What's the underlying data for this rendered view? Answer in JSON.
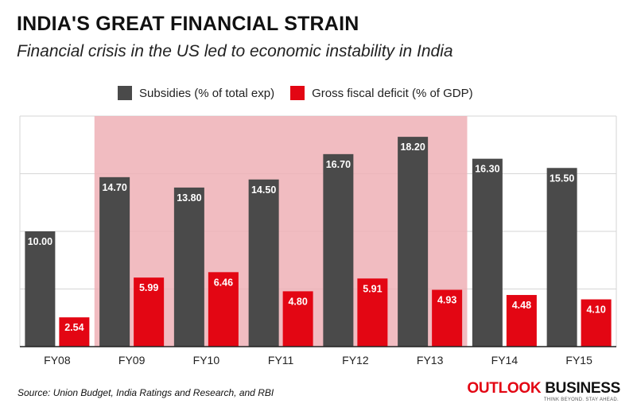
{
  "title": "INDIA'S GREAT FINANCIAL STRAIN",
  "subtitle": "Financial crisis in the US led to economic instability in India",
  "source": "Source: Union Budget, India Ratings and Research, and RBI",
  "brand": {
    "name_part1": "OUTLOOK",
    "name_part2": " BUSINESS",
    "tagline": "THINK BEYOND. STAY AHEAD.",
    "colors": {
      "part1": "#e30613",
      "part2": "#111111"
    }
  },
  "colors": {
    "subsidies": "#4a4a4a",
    "deficit": "#e30613",
    "highlight": "#eeb0b6",
    "grid": "#d6d6d6"
  },
  "chart_data": {
    "type": "bar",
    "categories": [
      "FY08",
      "FY09",
      "FY10",
      "FY11",
      "FY12",
      "FY13",
      "FY14",
      "FY15"
    ],
    "series": [
      {
        "name": "Subsidies (% of total exp)",
        "values": [
          10.0,
          14.7,
          13.8,
          14.5,
          16.7,
          18.2,
          16.3,
          15.5
        ],
        "labels": [
          "10.00",
          "14.70",
          "13.80",
          "14.50",
          "16.70",
          "18.20",
          "16.30",
          "15.50"
        ]
      },
      {
        "name": "Gross fiscal deficit (% of GDP)",
        "values": [
          2.54,
          5.99,
          6.46,
          4.8,
          5.91,
          4.93,
          4.48,
          4.1
        ],
        "labels": [
          "2.54",
          "5.99",
          "6.46",
          "4.80",
          "5.91",
          "4.93",
          "4.48",
          "4.10"
        ]
      }
    ],
    "ylim": [
      0,
      20
    ],
    "grid": true,
    "legend_position": "top-center",
    "highlight_range": [
      "FY09",
      "FY13"
    ]
  }
}
